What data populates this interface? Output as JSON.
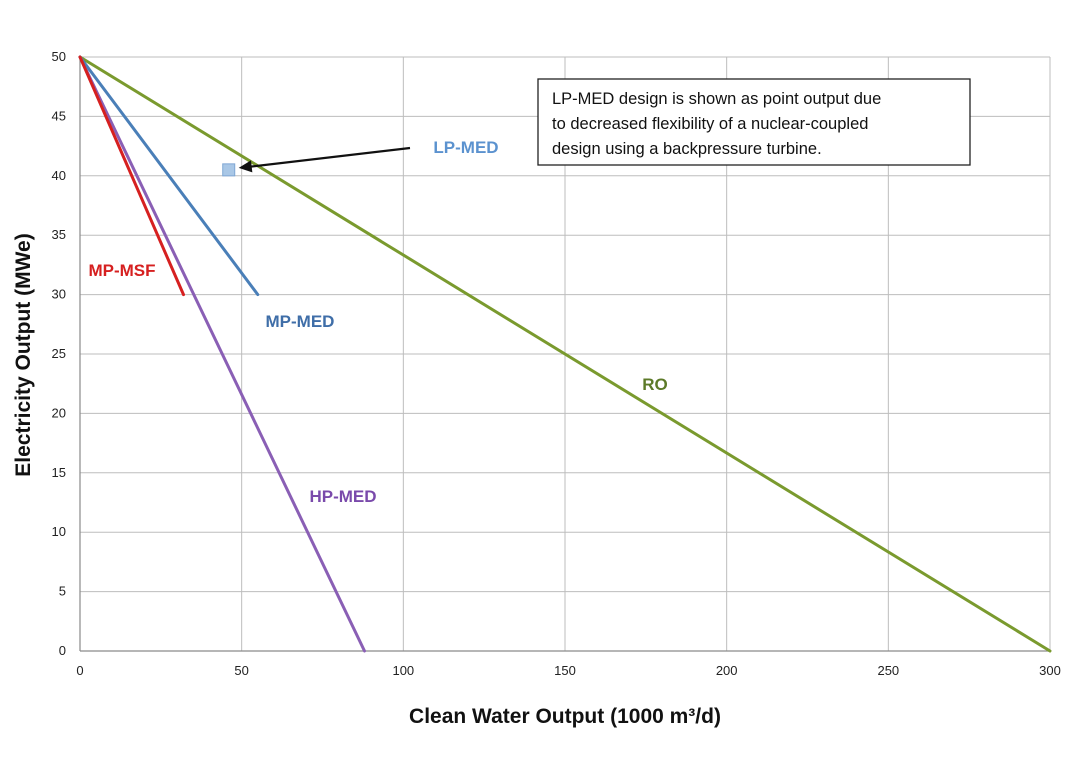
{
  "chart_data": {
    "type": "line",
    "title": "",
    "xlabel": "Clean Water Output (1000 m³/d)",
    "ylabel": "Electricity Output (MWe)",
    "xlim": [
      0,
      300
    ],
    "ylim": [
      0,
      50
    ],
    "x_ticks": [
      0,
      50,
      100,
      150,
      200,
      250,
      300
    ],
    "y_ticks": [
      0,
      5,
      10,
      15,
      20,
      25,
      30,
      35,
      40,
      45,
      50
    ],
    "grid": true,
    "legend": "none",
    "series": [
      {
        "name": "RO",
        "color": "#7a9a2e",
        "label_color": "#5c7a28",
        "points": [
          [
            0,
            50
          ],
          [
            300,
            0
          ]
        ]
      },
      {
        "name": "HP-MED",
        "color": "#8a5fb5",
        "label_color": "#7a4aab",
        "points": [
          [
            0,
            50
          ],
          [
            88,
            0
          ]
        ]
      },
      {
        "name": "MP-MED",
        "color": "#4a7fb8",
        "label_color": "#3f6ea8",
        "points": [
          [
            0,
            50
          ],
          [
            55,
            30
          ]
        ]
      },
      {
        "name": "MP-MSF",
        "color": "#d62020",
        "label_color": "#d62020",
        "points": [
          [
            0,
            50
          ],
          [
            32,
            30
          ]
        ]
      },
      {
        "name": "LP-MED",
        "color": "#a9c7e6",
        "label_color": "#5b92cf",
        "point": [
          46,
          40.5
        ]
      }
    ],
    "annotations": {
      "note_lines": [
        "LP-MED design is shown as point output due",
        "to decreased flexibility of a nuclear-coupled",
        "design using a backpressure turbine."
      ]
    }
  }
}
